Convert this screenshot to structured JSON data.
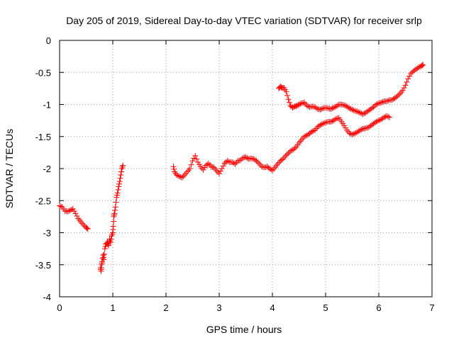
{
  "chart_data": {
    "type": "scatter",
    "title": "Day 205 of 2019, Sidereal Day-to-day VTEC variation (SDTVAR) for receiver srlp",
    "xlabel": "GPS time / hours",
    "ylabel": "SDTVAR / TECUs",
    "xlim": [
      0,
      7
    ],
    "ylim": [
      -4,
      0
    ],
    "xticks": [
      "0",
      "1",
      "2",
      "3",
      "4",
      "5",
      "6",
      "7"
    ],
    "yticks": [
      "0",
      "-0.5",
      "-1",
      "-1.5",
      "-2",
      "-2.5",
      "-3",
      "-3.5",
      "-4"
    ],
    "grid": true,
    "marker": "plus",
    "color": "#ff0000",
    "series": [
      {
        "values": [
          [
            0.0,
            -2.58
          ],
          [
            0.05,
            -2.6
          ],
          [
            0.1,
            -2.66
          ],
          [
            0.15,
            -2.67
          ],
          [
            0.2,
            -2.65
          ],
          [
            0.25,
            -2.63
          ],
          [
            0.3,
            -2.7
          ],
          [
            0.35,
            -2.78
          ],
          [
            0.4,
            -2.83
          ],
          [
            0.45,
            -2.88
          ],
          [
            0.5,
            -2.92
          ],
          [
            0.53,
            -2.94
          ]
        ]
      },
      {
        "values": [
          [
            0.77,
            -3.55
          ],
          [
            0.78,
            -3.6
          ],
          [
            0.79,
            -3.5
          ],
          [
            0.8,
            -3.45
          ],
          [
            0.82,
            -3.35
          ],
          [
            0.83,
            -3.42
          ],
          [
            0.85,
            -3.25
          ],
          [
            0.87,
            -3.18
          ],
          [
            0.9,
            -3.15
          ],
          [
            0.92,
            -3.2
          ],
          [
            0.94,
            -3.1
          ],
          [
            0.96,
            -3.15
          ],
          [
            0.98,
            -3.05
          ],
          [
            1.0,
            -3.0
          ],
          [
            1.01,
            -2.9
          ],
          [
            1.02,
            -2.75
          ],
          [
            1.03,
            -2.7
          ],
          [
            1.05,
            -2.6
          ],
          [
            1.07,
            -2.45
          ],
          [
            1.09,
            -2.38
          ],
          [
            1.11,
            -2.28
          ],
          [
            1.13,
            -2.2
          ],
          [
            1.15,
            -2.1
          ],
          [
            1.17,
            -2.0
          ],
          [
            1.19,
            -1.95
          ]
        ]
      },
      {
        "values": [
          [
            2.14,
            -1.97
          ],
          [
            2.16,
            -2.05
          ],
          [
            2.2,
            -2.1
          ],
          [
            2.25,
            -2.12
          ],
          [
            2.3,
            -2.14
          ],
          [
            2.35,
            -2.1
          ],
          [
            2.4,
            -2.05
          ],
          [
            2.45,
            -2.0
          ],
          [
            2.5,
            -1.88
          ],
          [
            2.55,
            -1.8
          ],
          [
            2.6,
            -1.9
          ],
          [
            2.65,
            -1.97
          ],
          [
            2.7,
            -2.02
          ],
          [
            2.75,
            -1.95
          ],
          [
            2.8,
            -1.92
          ],
          [
            2.85,
            -1.97
          ],
          [
            2.9,
            -1.98
          ],
          [
            2.95,
            -2.03
          ],
          [
            3.0,
            -2.08
          ],
          [
            3.05,
            -2.0
          ],
          [
            3.1,
            -1.92
          ],
          [
            3.15,
            -1.88
          ],
          [
            3.2,
            -1.9
          ],
          [
            3.25,
            -1.9
          ],
          [
            3.3,
            -1.93
          ],
          [
            3.35,
            -1.88
          ],
          [
            3.4,
            -1.87
          ],
          [
            3.45,
            -1.83
          ],
          [
            3.5,
            -1.82
          ],
          [
            3.55,
            -1.85
          ],
          [
            3.6,
            -1.84
          ],
          [
            3.65,
            -1.85
          ],
          [
            3.7,
            -1.88
          ],
          [
            3.75,
            -1.92
          ],
          [
            3.8,
            -1.97
          ],
          [
            3.85,
            -1.98
          ],
          [
            3.9,
            -1.97
          ],
          [
            3.95,
            -2.0
          ],
          [
            4.0,
            -2.03
          ],
          [
            4.05,
            -1.98
          ],
          [
            4.1,
            -1.93
          ],
          [
            4.15,
            -1.88
          ],
          [
            4.2,
            -1.85
          ],
          [
            4.25,
            -1.8
          ],
          [
            4.3,
            -1.76
          ],
          [
            4.35,
            -1.72
          ],
          [
            4.4,
            -1.7
          ],
          [
            4.45,
            -1.66
          ],
          [
            4.5,
            -1.6
          ],
          [
            4.55,
            -1.55
          ],
          [
            4.6,
            -1.5
          ],
          [
            4.65,
            -1.48
          ],
          [
            4.7,
            -1.45
          ],
          [
            4.75,
            -1.42
          ],
          [
            4.8,
            -1.4
          ],
          [
            4.85,
            -1.35
          ],
          [
            4.9,
            -1.32
          ],
          [
            4.95,
            -1.3
          ],
          [
            5.0,
            -1.28
          ],
          [
            5.05,
            -1.27
          ],
          [
            5.1,
            -1.27
          ],
          [
            5.15,
            -1.25
          ],
          [
            5.2,
            -1.22
          ],
          [
            5.25,
            -1.21
          ],
          [
            5.3,
            -1.27
          ],
          [
            5.35,
            -1.33
          ],
          [
            5.4,
            -1.4
          ],
          [
            5.45,
            -1.45
          ],
          [
            5.5,
            -1.47
          ],
          [
            5.55,
            -1.45
          ],
          [
            5.6,
            -1.43
          ],
          [
            5.65,
            -1.4
          ],
          [
            5.7,
            -1.38
          ],
          [
            5.75,
            -1.37
          ],
          [
            5.8,
            -1.36
          ],
          [
            5.85,
            -1.33
          ],
          [
            5.9,
            -1.3
          ],
          [
            5.95,
            -1.27
          ],
          [
            6.0,
            -1.25
          ],
          [
            6.05,
            -1.23
          ],
          [
            6.1,
            -1.2
          ],
          [
            6.15,
            -1.18
          ],
          [
            6.2,
            -1.2
          ]
        ]
      },
      {
        "values": [
          [
            4.12,
            -0.75
          ],
          [
            4.15,
            -0.72
          ],
          [
            4.18,
            -0.74
          ],
          [
            4.22,
            -0.74
          ],
          [
            4.26,
            -0.8
          ],
          [
            4.3,
            -0.92
          ],
          [
            4.34,
            -1.02
          ],
          [
            4.38,
            -1.05
          ],
          [
            4.42,
            -1.03
          ],
          [
            4.46,
            -1.02
          ],
          [
            4.5,
            -1.0
          ],
          [
            4.55,
            -0.98
          ],
          [
            4.6,
            -0.97
          ],
          [
            4.65,
            -1.02
          ],
          [
            4.7,
            -1.04
          ],
          [
            4.75,
            -1.03
          ],
          [
            4.8,
            -1.04
          ],
          [
            4.85,
            -1.07
          ],
          [
            4.9,
            -1.08
          ],
          [
            4.95,
            -1.06
          ],
          [
            5.0,
            -1.05
          ],
          [
            5.05,
            -1.06
          ],
          [
            5.1,
            -1.07
          ],
          [
            5.15,
            -1.05
          ],
          [
            5.2,
            -1.03
          ],
          [
            5.25,
            -1.0
          ],
          [
            5.3,
            -1.0
          ],
          [
            5.35,
            -1.01
          ],
          [
            5.4,
            -1.03
          ],
          [
            5.45,
            -1.06
          ],
          [
            5.5,
            -1.08
          ],
          [
            5.55,
            -1.1
          ],
          [
            5.6,
            -1.11
          ],
          [
            5.65,
            -1.13
          ],
          [
            5.7,
            -1.15
          ],
          [
            5.75,
            -1.13
          ],
          [
            5.8,
            -1.1
          ],
          [
            5.85,
            -1.07
          ],
          [
            5.9,
            -1.04
          ],
          [
            5.95,
            -1.0
          ],
          [
            6.0,
            -0.98
          ],
          [
            6.05,
            -0.97
          ],
          [
            6.1,
            -0.95
          ],
          [
            6.15,
            -0.95
          ],
          [
            6.2,
            -0.93
          ],
          [
            6.25,
            -0.93
          ],
          [
            6.3,
            -0.9
          ],
          [
            6.35,
            -0.87
          ],
          [
            6.4,
            -0.83
          ],
          [
            6.45,
            -0.78
          ],
          [
            6.5,
            -0.7
          ],
          [
            6.55,
            -0.6
          ],
          [
            6.6,
            -0.52
          ],
          [
            6.65,
            -0.48
          ],
          [
            6.7,
            -0.45
          ],
          [
            6.75,
            -0.42
          ],
          [
            6.8,
            -0.4
          ],
          [
            6.83,
            -0.38
          ]
        ]
      }
    ]
  }
}
